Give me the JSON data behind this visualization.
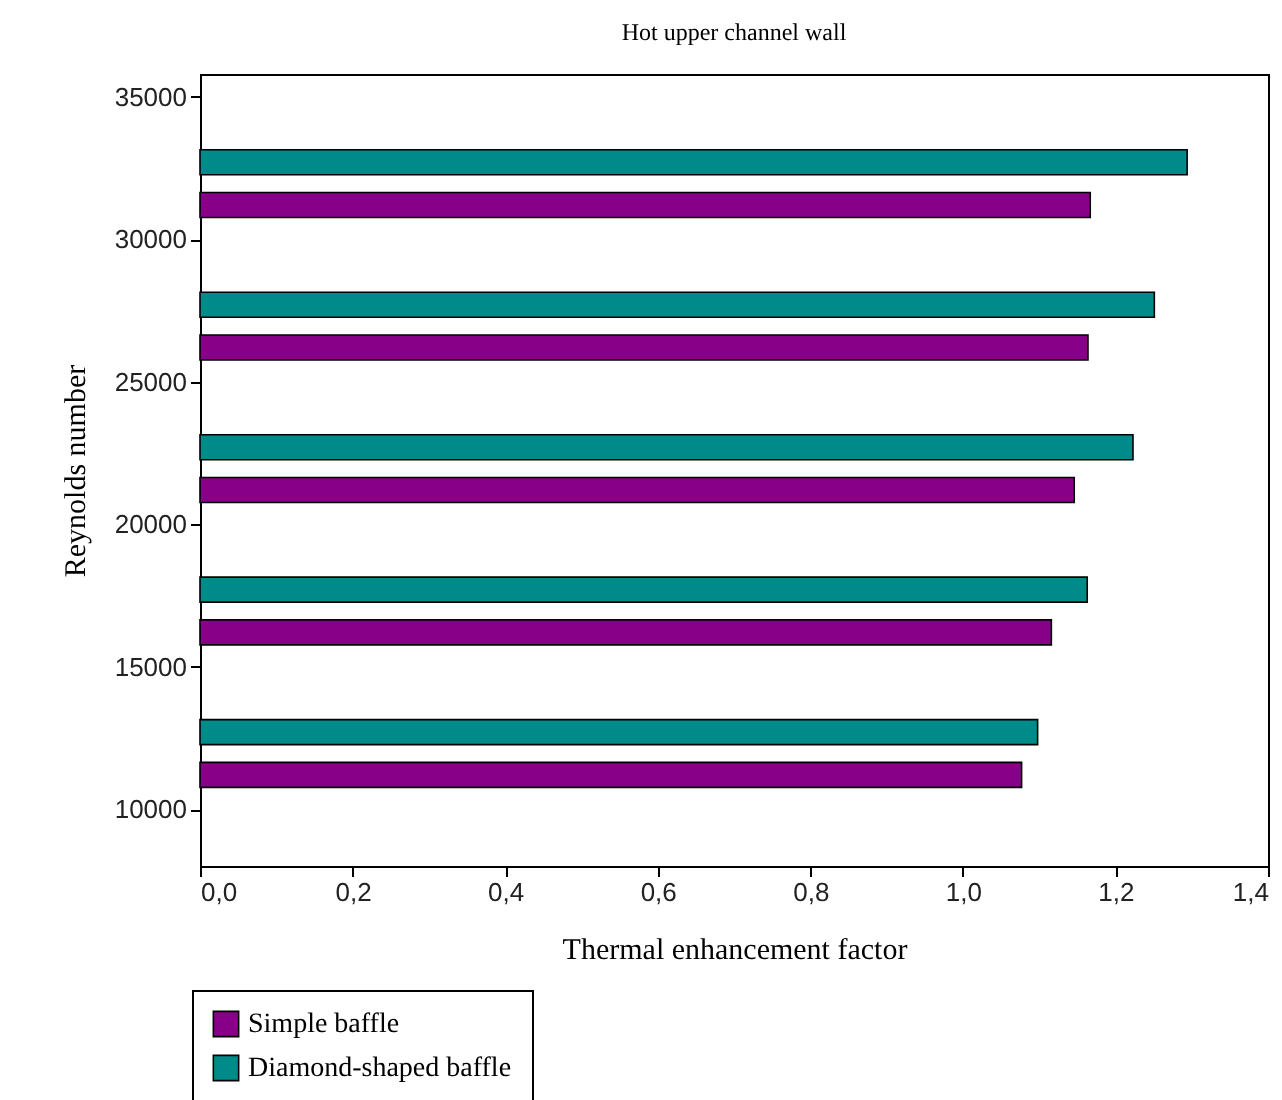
{
  "chart_data": {
    "type": "bar",
    "orientation": "horizontal",
    "title": "Hot upper channel wall",
    "xlabel": "Thermal enhancement factor",
    "ylabel": "Reynolds number",
    "series": [
      {
        "name": "Simple baffle",
        "color": "#880088",
        "x": [
          11200,
          16200,
          21200,
          26200,
          31200
        ],
        "values": [
          1.077,
          1.116,
          1.146,
          1.164,
          1.167
        ]
      },
      {
        "name": "Diamond-shaped baffle",
        "color": "#008b8b",
        "x": [
          12700,
          17700,
          22700,
          27700,
          32700
        ],
        "values": [
          1.098,
          1.163,
          1.223,
          1.251,
          1.294
        ]
      }
    ],
    "xlim": [
      0,
      1.4
    ],
    "xticks": [
      {
        "value": 0,
        "label": "0,0"
      },
      {
        "value": 0.2,
        "label": "0,2"
      },
      {
        "value": 0.4,
        "label": "0,4"
      },
      {
        "value": 0.6,
        "label": "0,6"
      },
      {
        "value": 0.8,
        "label": "0,8"
      },
      {
        "value": 1.0,
        "label": "1,0"
      },
      {
        "value": 1.2,
        "label": "1,2"
      },
      {
        "value": 1.4,
        "label": "1,4"
      }
    ],
    "ylim": [
      8000,
      35800
    ],
    "yticks": [
      10000,
      15000,
      20000,
      25000,
      30000,
      35000
    ],
    "legend": "bottom left"
  }
}
